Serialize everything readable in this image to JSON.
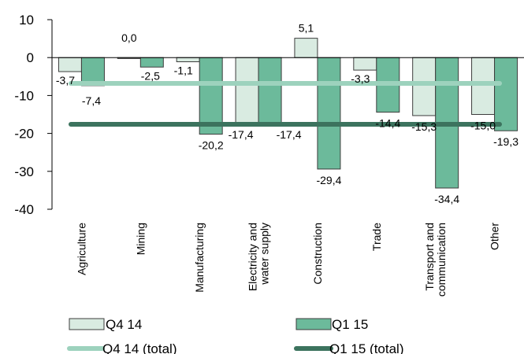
{
  "chart_data": {
    "type": "bar",
    "categories": [
      "Agriculture",
      "Mining",
      "Manufacturing",
      "Electricity and water supply",
      "Construction",
      "Trade",
      "Transport and communication",
      "Other"
    ],
    "category_lines": [
      [
        "Agriculture"
      ],
      [
        "Mining"
      ],
      [
        "Manufacturing"
      ],
      [
        "Electricity and",
        "water supply"
      ],
      [
        "Construction"
      ],
      [
        "Trade"
      ],
      [
        "Transport and",
        "communication"
      ],
      [
        "Other"
      ]
    ],
    "series": [
      {
        "name": "Q4 14",
        "values": [
          -3.7,
          0.0,
          -1.1,
          -17.4,
          5.1,
          -3.3,
          -15.3,
          -15.0
        ],
        "labels": [
          "-3,7",
          "0,0",
          "-1,1",
          "-17,4",
          "5,1",
          "-3,3",
          "-15,3",
          "-15,0"
        ],
        "color": "#d9ebe1"
      },
      {
        "name": "Q1 15",
        "values": [
          -7.4,
          -2.5,
          -20.2,
          -17.4,
          -29.4,
          -14.4,
          -34.4,
          -19.3
        ],
        "labels": [
          "-7,4",
          "-2,5",
          "-20,2",
          "-17,4",
          "-29,4",
          "-14,4",
          "-34,4",
          "-19,3"
        ],
        "color": "#6cba9b"
      }
    ],
    "totals": [
      {
        "name": "Q4 14 (total)",
        "value": -6.8,
        "color": "#9dd2bd"
      },
      {
        "name": "Q1 15 (total)",
        "value": -17.6,
        "color": "#3c735e"
      }
    ],
    "yticks": [
      "10",
      "0",
      "-10",
      "-20",
      "-30",
      "-40"
    ],
    "ylim": [
      -40,
      10
    ],
    "legend": "bottom",
    "grid": false
  }
}
